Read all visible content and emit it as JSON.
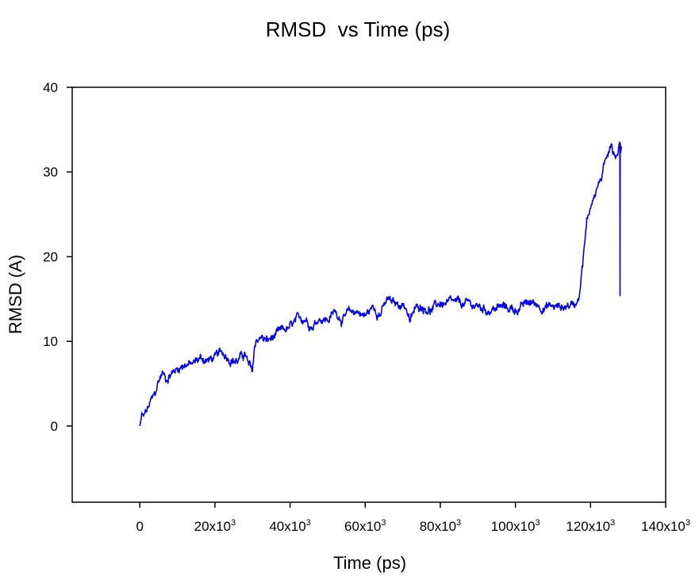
{
  "chart_data": {
    "type": "line",
    "title": "RMSD  vs Time (ps)",
    "xlabel": "Time (ps)",
    "ylabel": "RMSD (A)",
    "xlim": [
      -18000,
      140000
    ],
    "ylim": [
      -9,
      40
    ],
    "xticks": [
      {
        "value": 0,
        "base": "0",
        "sup": ""
      },
      {
        "value": 20000,
        "base": "20x10",
        "sup": "3"
      },
      {
        "value": 40000,
        "base": "40x10",
        "sup": "3"
      },
      {
        "value": 60000,
        "base": "60x10",
        "sup": "3"
      },
      {
        "value": 80000,
        "base": "80x10",
        "sup": "3"
      },
      {
        "value": 100000,
        "base": "100x10",
        "sup": "3"
      },
      {
        "value": 120000,
        "base": "120x10",
        "sup": "3"
      },
      {
        "value": 140000,
        "base": "140x10",
        "sup": "3"
      }
    ],
    "yticks": [
      {
        "value": 0,
        "label": "0"
      },
      {
        "value": 10,
        "label": "10"
      },
      {
        "value": 20,
        "label": "20"
      },
      {
        "value": 30,
        "label": "30"
      },
      {
        "value": 40,
        "label": "40"
      }
    ],
    "grid": false,
    "series": [
      {
        "color": "#0000ee",
        "x": [
          0,
          500,
          1000,
          2000,
          3000,
          4000,
          5000,
          6000,
          7000,
          8000,
          9000,
          10000,
          12000,
          14000,
          16000,
          18000,
          20000,
          22000,
          24000,
          26000,
          28000,
          29000,
          30000,
          30500,
          31000,
          32000,
          34000,
          36000,
          38000,
          40000,
          42000,
          44000,
          46000,
          48000,
          50000,
          52000,
          54000,
          56000,
          58000,
          60000,
          62000,
          64000,
          66000,
          68000,
          70000,
          71000,
          72000,
          73000,
          75000,
          78000,
          80000,
          84000,
          88000,
          92000,
          96000,
          100000,
          104000,
          108000,
          112000,
          114000,
          116000,
          117000,
          118000,
          119000,
          120000,
          121000,
          122000,
          123000,
          124000,
          125000,
          125500,
          126000,
          127000,
          127800,
          127850,
          127900,
          128000,
          128300
        ],
        "y": [
          0,
          1.2,
          1.0,
          1.8,
          2.8,
          3.5,
          5.2,
          6.3,
          5.5,
          6.2,
          6.5,
          6.8,
          7.5,
          7.2,
          8.0,
          7.8,
          8.0,
          8.5,
          8.2,
          7.8,
          8.5,
          7.0,
          6.2,
          9.0,
          10.0,
          10.5,
          10.0,
          10.5,
          11.0,
          11.5,
          12.2,
          12.8,
          12.0,
          13.0,
          12.6,
          13.5,
          12.8,
          13.2,
          13.6,
          13.0,
          14.0,
          13.5,
          14.8,
          14.2,
          14.5,
          14.0,
          12.2,
          13.5,
          14.3,
          13.8,
          14.5,
          14.2,
          14.3,
          13.8,
          14.0,
          13.8,
          14.5,
          14.2,
          14.0,
          14.3,
          14.5,
          16.0,
          20.0,
          24.0,
          26.0,
          27.5,
          28.5,
          29.5,
          31.0,
          33.0,
          34.0,
          32.8,
          32.0,
          33.5,
          15.4,
          33.0,
          32.5,
          33.0
        ]
      }
    ]
  }
}
